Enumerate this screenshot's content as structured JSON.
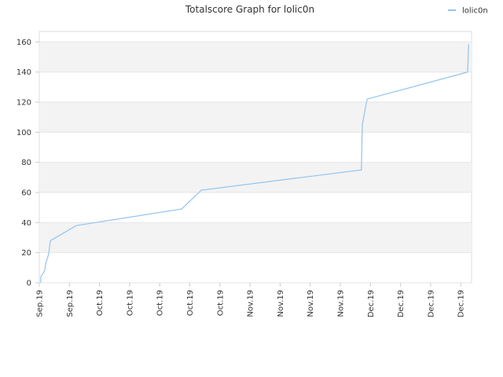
{
  "chart_data": {
    "type": "line",
    "title": "Totalscore Graph for lolic0n",
    "x": [
      0.05,
      0.05,
      0.18,
      0.21,
      0.31,
      0.37,
      1.23,
      4.73,
      5.38,
      10.7,
      10.73,
      10.89,
      14.23,
      14.26
    ],
    "series": [
      {
        "name": "lolic0n",
        "color": "#92c3ee",
        "values": [
          0,
          4,
          8,
          12.5,
          19,
          28,
          38,
          49,
          61.5,
          75,
          105,
          122,
          140,
          158.5
        ]
      }
    ],
    "xlim": [
      0,
      14.36
    ],
    "xticks": [
      {
        "value": 0,
        "label": "Sep.19"
      },
      {
        "value": 1,
        "label": "Sep.19"
      },
      {
        "value": 2,
        "label": "Oct.19"
      },
      {
        "value": 3,
        "label": "Oct.19"
      },
      {
        "value": 4,
        "label": "Oct.19"
      },
      {
        "value": 5,
        "label": "Oct.19"
      },
      {
        "value": 6,
        "label": "Oct.19"
      },
      {
        "value": 7,
        "label": "Nov.19"
      },
      {
        "value": 8,
        "label": "Nov.19"
      },
      {
        "value": 9,
        "label": "Nov.19"
      },
      {
        "value": 10,
        "label": "Nov.19"
      },
      {
        "value": 11,
        "label": "Dec.19"
      },
      {
        "value": 12,
        "label": "Dec.19"
      },
      {
        "value": 13,
        "label": "Dec.19"
      },
      {
        "value": 14,
        "label": "Dec.19"
      }
    ],
    "ylim": [
      0,
      167
    ],
    "yticks": [
      0,
      20,
      40,
      60,
      80,
      100,
      120,
      140,
      160
    ],
    "grid": true,
    "legend": "top-right"
  }
}
